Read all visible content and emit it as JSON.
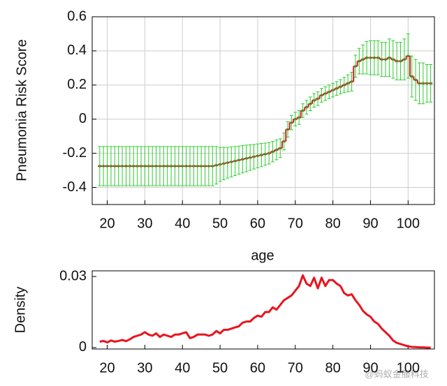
{
  "chart_data": [
    {
      "type": "errorbar",
      "ylabel": "Pneumonia Risk Score",
      "xlabel": "age",
      "xlim": [
        16,
        107
      ],
      "xticks": [
        20,
        30,
        40,
        50,
        60,
        70,
        80,
        90,
        100
      ],
      "ylim": [
        -0.5,
        0.6
      ],
      "yticks": [
        -0.4,
        -0.2,
        0,
        0.2,
        0.4,
        0.6
      ],
      "grid": true,
      "color": "#d81b1b",
      "error_color": "#2ecc2e",
      "marker_color": "#4f8a2a",
      "x": [
        18,
        19,
        20,
        21,
        22,
        23,
        24,
        25,
        26,
        27,
        28,
        29,
        30,
        31,
        32,
        33,
        34,
        35,
        36,
        37,
        38,
        39,
        40,
        41,
        42,
        43,
        44,
        45,
        46,
        47,
        48,
        49,
        50,
        51,
        52,
        53,
        54,
        55,
        56,
        57,
        58,
        59,
        60,
        61,
        62,
        63,
        64,
        65,
        66,
        67,
        68,
        69,
        70,
        71,
        72,
        73,
        74,
        75,
        76,
        77,
        78,
        79,
        80,
        81,
        82,
        83,
        84,
        85,
        86,
        87,
        88,
        89,
        90,
        91,
        92,
        93,
        94,
        95,
        96,
        97,
        98,
        99,
        100,
        101,
        102,
        103,
        104,
        105,
        106
      ],
      "values": [
        -0.275,
        -0.275,
        -0.275,
        -0.275,
        -0.275,
        -0.275,
        -0.275,
        -0.275,
        -0.275,
        -0.275,
        -0.275,
        -0.275,
        -0.275,
        -0.275,
        -0.275,
        -0.275,
        -0.275,
        -0.275,
        -0.275,
        -0.275,
        -0.275,
        -0.275,
        -0.275,
        -0.275,
        -0.275,
        -0.275,
        -0.275,
        -0.275,
        -0.275,
        -0.275,
        -0.275,
        -0.27,
        -0.265,
        -0.26,
        -0.255,
        -0.25,
        -0.245,
        -0.24,
        -0.235,
        -0.23,
        -0.225,
        -0.22,
        -0.215,
        -0.21,
        -0.205,
        -0.2,
        -0.19,
        -0.18,
        -0.17,
        -0.13,
        -0.06,
        -0.02,
        0,
        0.01,
        0.05,
        0.07,
        0.09,
        0.11,
        0.12,
        0.14,
        0.15,
        0.16,
        0.17,
        0.18,
        0.19,
        0.2,
        0.21,
        0.22,
        0.31,
        0.34,
        0.35,
        0.36,
        0.36,
        0.36,
        0.36,
        0.35,
        0.35,
        0.36,
        0.35,
        0.34,
        0.34,
        0.35,
        0.37,
        0.25,
        0.23,
        0.21,
        0.21,
        0.21,
        0.21
      ],
      "errors": [
        0.115,
        0.115,
        0.115,
        0.115,
        0.115,
        0.115,
        0.115,
        0.115,
        0.115,
        0.115,
        0.115,
        0.115,
        0.115,
        0.115,
        0.115,
        0.115,
        0.115,
        0.115,
        0.115,
        0.115,
        0.115,
        0.115,
        0.115,
        0.115,
        0.115,
        0.115,
        0.115,
        0.115,
        0.115,
        0.115,
        0.115,
        0.11,
        0.1,
        0.095,
        0.09,
        0.088,
        0.085,
        0.082,
        0.08,
        0.078,
        0.075,
        0.072,
        0.07,
        0.068,
        0.065,
        0.063,
        0.06,
        0.058,
        0.055,
        0.05,
        0.045,
        0.042,
        0.04,
        0.04,
        0.04,
        0.04,
        0.04,
        0.04,
        0.04,
        0.04,
        0.04,
        0.04,
        0.04,
        0.04,
        0.042,
        0.045,
        0.05,
        0.055,
        0.065,
        0.075,
        0.085,
        0.095,
        0.1,
        0.1,
        0.1,
        0.1,
        0.1,
        0.11,
        0.11,
        0.11,
        0.11,
        0.12,
        0.13,
        0.12,
        0.12,
        0.12,
        0.12,
        0.11,
        0.11
      ]
    },
    {
      "type": "line",
      "ylabel": "Density",
      "xlim": [
        16,
        107
      ],
      "xticks": [
        20,
        30,
        40,
        50,
        60,
        70,
        80,
        90,
        100
      ],
      "ylim": [
        -0.0006,
        0.0324
      ],
      "yticks": [
        0,
        0.03
      ],
      "grid": false,
      "color": "#e8141e",
      "x": [
        18,
        19,
        20,
        21,
        22,
        23,
        24,
        25,
        26,
        27,
        28,
        29,
        30,
        31,
        32,
        33,
        34,
        35,
        36,
        37,
        38,
        39,
        40,
        41,
        42,
        43,
        44,
        45,
        46,
        47,
        48,
        49,
        50,
        51,
        52,
        53,
        54,
        55,
        56,
        57,
        58,
        59,
        60,
        61,
        62,
        63,
        64,
        65,
        66,
        67,
        68,
        69,
        70,
        71,
        72,
        73,
        74,
        75,
        76,
        77,
        78,
        79,
        80,
        81,
        82,
        83,
        84,
        85,
        86,
        87,
        88,
        89,
        90,
        91,
        92,
        93,
        94,
        95,
        96,
        97,
        98,
        99,
        100,
        101,
        102,
        103,
        104,
        105,
        106
      ],
      "values": [
        0.0025,
        0.0028,
        0.0022,
        0.003,
        0.0025,
        0.0028,
        0.0032,
        0.0027,
        0.0035,
        0.0045,
        0.005,
        0.0055,
        0.0065,
        0.0055,
        0.005,
        0.006,
        0.0045,
        0.0055,
        0.005,
        0.0045,
        0.0055,
        0.0055,
        0.006,
        0.0065,
        0.004,
        0.0045,
        0.0055,
        0.0055,
        0.0055,
        0.005,
        0.0055,
        0.007,
        0.006,
        0.0075,
        0.0075,
        0.008,
        0.0085,
        0.009,
        0.0105,
        0.011,
        0.011,
        0.0125,
        0.0135,
        0.013,
        0.015,
        0.015,
        0.017,
        0.016,
        0.018,
        0.02,
        0.021,
        0.022,
        0.024,
        0.026,
        0.0305,
        0.027,
        0.026,
        0.0295,
        0.025,
        0.0295,
        0.026,
        0.0285,
        0.0285,
        0.027,
        0.026,
        0.023,
        0.022,
        0.0225,
        0.02,
        0.018,
        0.0155,
        0.014,
        0.013,
        0.011,
        0.01,
        0.008,
        0.0065,
        0.005,
        0.003,
        0.002,
        0.0015,
        0.001,
        0.0005,
        0.0003,
        0.0002,
        0.0001,
        0.0001,
        0,
        0
      ]
    }
  ],
  "watermark": "@蚂蚁金服科技"
}
